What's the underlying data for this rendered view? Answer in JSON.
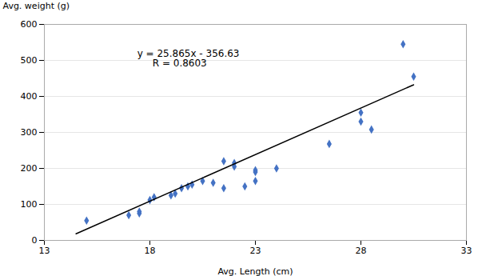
{
  "chart_data": {
    "type": "scatter",
    "xlabel": "Avg. Length (cm)",
    "ylabel": "Avg. weight (g)",
    "annotation": "y = 25.865x - 356.63\n     R = 0.8603",
    "xlim": [
      13,
      33
    ],
    "ylim": [
      0,
      600
    ],
    "xticks": [
      13,
      18,
      23,
      28,
      33
    ],
    "yticks": [
      0,
      100,
      200,
      300,
      400,
      500,
      600
    ],
    "grid": true,
    "series": [
      {
        "type": "scatter",
        "color": "#4472C4",
        "marker": "diamond",
        "x": [
          15.0,
          17.0,
          17.5,
          17.5,
          18.0,
          18.2,
          19.0,
          19.2,
          19.5,
          19.8,
          20.0,
          20.5,
          21.0,
          21.5,
          21.5,
          22.0,
          22.0,
          22.5,
          23.0,
          23.0,
          23.0,
          24.0,
          26.5,
          28.0,
          28.0,
          28.5,
          30.0,
          30.5
        ],
        "values": [
          55,
          70,
          75,
          80,
          112,
          120,
          125,
          130,
          145,
          150,
          155,
          165,
          160,
          145,
          220,
          205,
          215,
          150,
          190,
          195,
          165,
          200,
          268,
          355,
          330,
          308,
          545,
          455
        ]
      },
      {
        "type": "line",
        "color": "black",
        "x": [
          14.5,
          30.5
        ],
        "values": [
          18.4125,
          432.2525
        ]
      }
    ]
  }
}
